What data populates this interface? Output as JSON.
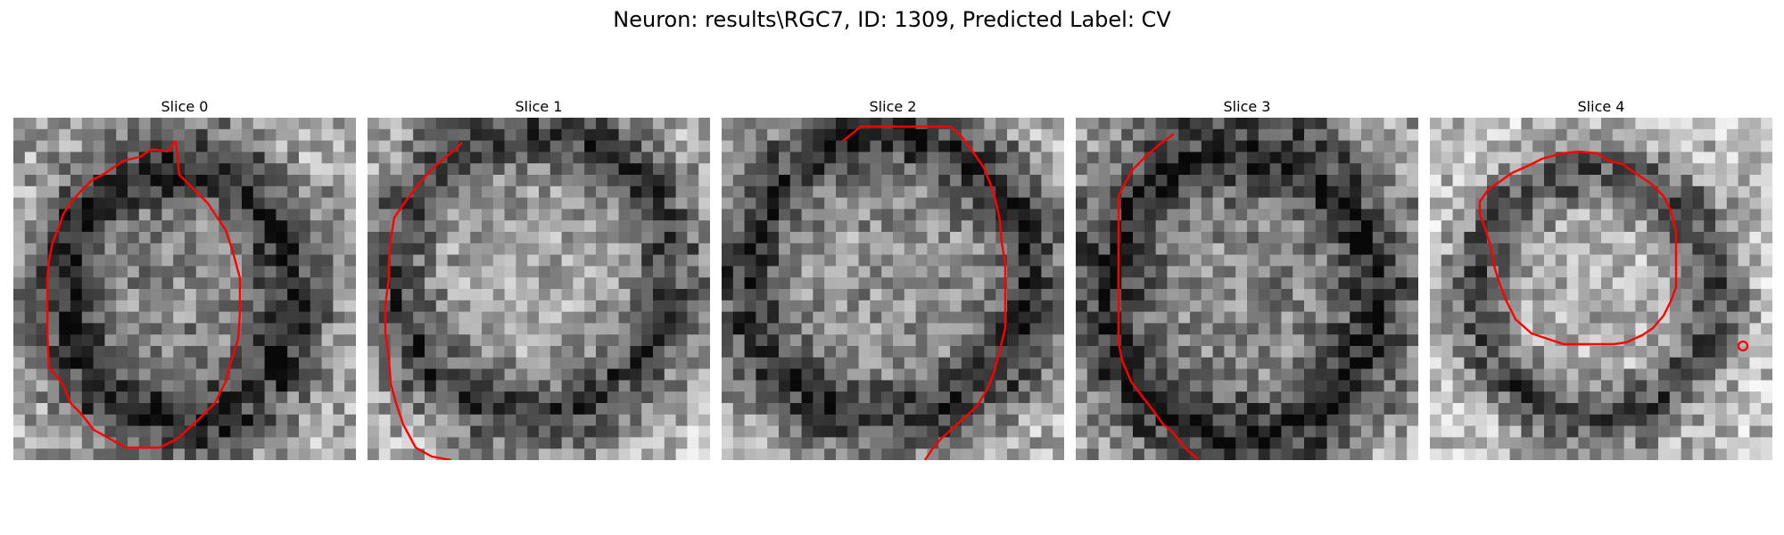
{
  "figure": {
    "title": "Neuron: results\\RGC7, ID: 1309, Predicted Label: CV"
  },
  "contour_color": "#ff0000",
  "panels": [
    {
      "title": "Slice 0"
    },
    {
      "title": "Slice 1"
    },
    {
      "title": "Slice 2"
    },
    {
      "title": "Slice 3"
    },
    {
      "title": "Slice 4"
    }
  ]
}
